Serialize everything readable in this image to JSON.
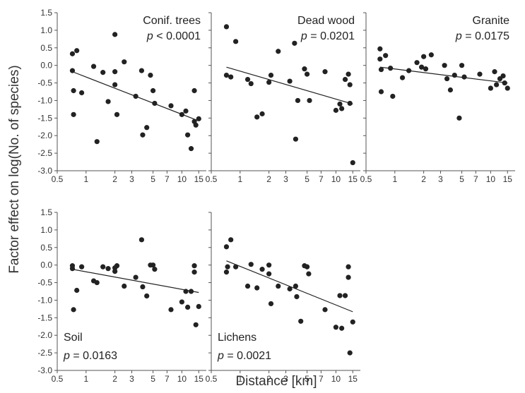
{
  "chart_data": {
    "type": "scatter",
    "xlabel": "Distance [km]",
    "ylabel": "Factor effect on log(No. of species)",
    "x_scale": "log",
    "xlim": [
      0.5,
      18
    ],
    "ylim": [
      -3.0,
      1.5
    ],
    "x_ticks": [
      "0.5",
      "1",
      "2",
      "3",
      "5",
      "7",
      "10",
      "15"
    ],
    "y_ticks": [
      "1.5",
      "1.0",
      "0.5",
      "0.0",
      "-0.5",
      "-1.0",
      "-1.5",
      "-2.0",
      "-2.5",
      "-3.0"
    ],
    "colors": {
      "points": "#222222",
      "lines": "#222222",
      "frame": "#555555"
    },
    "panels": [
      {
        "name": "Conif. trees",
        "p_symbol": "p",
        "p_rest": " < 0.0001",
        "points": [
          [
            0.72,
            0.33
          ],
          [
            0.72,
            -0.15
          ],
          [
            0.74,
            -0.72
          ],
          [
            0.74,
            -1.4
          ],
          [
            0.8,
            0.42
          ],
          [
            0.9,
            -0.78
          ],
          [
            1.2,
            -0.03
          ],
          [
            1.3,
            -2.17
          ],
          [
            1.5,
            -0.2
          ],
          [
            1.7,
            -1.03
          ],
          [
            2.0,
            0.88
          ],
          [
            2.0,
            -0.18
          ],
          [
            2.0,
            -0.55
          ],
          [
            2.1,
            -1.4
          ],
          [
            2.5,
            0.1
          ],
          [
            3.3,
            -0.88
          ],
          [
            3.8,
            -0.15
          ],
          [
            3.9,
            -1.98
          ],
          [
            4.3,
            -1.77
          ],
          [
            4.7,
            -0.28
          ],
          [
            5.0,
            -0.72
          ],
          [
            5.2,
            -1.08
          ],
          [
            7.7,
            -1.15
          ],
          [
            10,
            -1.4
          ],
          [
            11,
            -1.3
          ],
          [
            11.5,
            -1.98
          ],
          [
            12.5,
            -2.37
          ],
          [
            13.5,
            -0.72
          ],
          [
            13.5,
            -1.6
          ],
          [
            14,
            -1.7
          ],
          [
            15,
            -1.52
          ]
        ],
        "trend": [
          [
            0.72,
            -0.18
          ],
          [
            15,
            -1.58
          ]
        ]
      },
      {
        "name": "Dead wood",
        "p_symbol": "p",
        "p_rest": " = 0.0201",
        "points": [
          [
            0.72,
            1.1
          ],
          [
            0.72,
            -0.28
          ],
          [
            0.8,
            -0.33
          ],
          [
            0.9,
            0.68
          ],
          [
            1.2,
            -0.4
          ],
          [
            1.3,
            -0.52
          ],
          [
            1.5,
            -1.47
          ],
          [
            1.7,
            -1.38
          ],
          [
            2.0,
            -0.48
          ],
          [
            2.1,
            -0.28
          ],
          [
            2.5,
            0.4
          ],
          [
            3.3,
            -0.45
          ],
          [
            3.7,
            0.63
          ],
          [
            3.8,
            -2.1
          ],
          [
            4.0,
            -1.0
          ],
          [
            4.7,
            -0.1
          ],
          [
            5.0,
            -0.25
          ],
          [
            5.3,
            -1.0
          ],
          [
            7.7,
            -0.18
          ],
          [
            10,
            -1.28
          ],
          [
            11,
            -1.1
          ],
          [
            11.5,
            -1.23
          ],
          [
            12.5,
            -0.4
          ],
          [
            13.5,
            -0.25
          ],
          [
            14,
            -0.55
          ],
          [
            14,
            -1.08
          ],
          [
            15,
            -2.77
          ]
        ],
        "trend": [
          [
            0.72,
            -0.05
          ],
          [
            15,
            -1.1
          ]
        ]
      },
      {
        "name": "Granite",
        "p_symbol": "p",
        "p_rest": " = 0.0175",
        "points": [
          [
            0.7,
            0.47
          ],
          [
            0.7,
            0.18
          ],
          [
            0.72,
            -0.12
          ],
          [
            0.72,
            -0.75
          ],
          [
            0.8,
            0.28
          ],
          [
            0.9,
            -0.08
          ],
          [
            0.95,
            -0.88
          ],
          [
            1.2,
            -0.35
          ],
          [
            1.4,
            -0.15
          ],
          [
            1.7,
            0.08
          ],
          [
            1.9,
            -0.05
          ],
          [
            2.0,
            0.25
          ],
          [
            2.1,
            -0.1
          ],
          [
            2.4,
            0.3
          ],
          [
            3.3,
            0.0
          ],
          [
            3.5,
            -0.38
          ],
          [
            3.8,
            -0.7
          ],
          [
            4.2,
            -0.28
          ],
          [
            4.7,
            -1.5
          ],
          [
            5.0,
            0.0
          ],
          [
            5.3,
            -0.33
          ],
          [
            7.7,
            -0.25
          ],
          [
            10,
            -0.65
          ],
          [
            11,
            -0.18
          ],
          [
            11.5,
            -0.55
          ],
          [
            12.5,
            -0.38
          ],
          [
            13.5,
            -0.3
          ],
          [
            14,
            -0.5
          ],
          [
            15,
            -0.65
          ]
        ],
        "trend": [
          [
            0.7,
            -0.05
          ],
          [
            15,
            -0.5
          ]
        ]
      },
      {
        "name": "Soil",
        "p_symbol": "p",
        "p_rest": " = 0.0163",
        "points": [
          [
            0.72,
            -0.02
          ],
          [
            0.72,
            -0.1
          ],
          [
            0.74,
            -1.27
          ],
          [
            0.8,
            -0.72
          ],
          [
            0.9,
            -0.05
          ],
          [
            1.2,
            -0.45
          ],
          [
            1.3,
            -0.5
          ],
          [
            1.5,
            -0.05
          ],
          [
            1.7,
            -0.1
          ],
          [
            2.0,
            -0.08
          ],
          [
            2.0,
            -0.18
          ],
          [
            2.1,
            -0.02
          ],
          [
            2.5,
            -0.6
          ],
          [
            3.3,
            -0.35
          ],
          [
            3.8,
            0.72
          ],
          [
            3.9,
            -0.62
          ],
          [
            4.3,
            -0.88
          ],
          [
            4.7,
            0.0
          ],
          [
            5.0,
            0.0
          ],
          [
            5.2,
            -0.12
          ],
          [
            7.7,
            -1.27
          ],
          [
            10,
            -1.05
          ],
          [
            11,
            -0.75
          ],
          [
            11.5,
            -1.2
          ],
          [
            12.5,
            -0.75
          ],
          [
            13.5,
            -0.02
          ],
          [
            13.5,
            -0.2
          ],
          [
            14,
            -1.7
          ],
          [
            15,
            -1.18
          ]
        ],
        "trend": [
          [
            0.72,
            -0.12
          ],
          [
            15,
            -0.78
          ]
        ]
      },
      {
        "name": "Lichens",
        "p_symbol": "p",
        "p_rest": " = 0.0021",
        "points": [
          [
            0.72,
            0.52
          ],
          [
            0.72,
            -0.2
          ],
          [
            0.74,
            -0.05
          ],
          [
            0.8,
            0.72
          ],
          [
            0.9,
            -0.05
          ],
          [
            1.2,
            -0.6
          ],
          [
            1.3,
            0.02
          ],
          [
            1.5,
            -0.65
          ],
          [
            1.7,
            -0.12
          ],
          [
            2.0,
            -0.25
          ],
          [
            2.0,
            0.0
          ],
          [
            2.1,
            -1.1
          ],
          [
            2.5,
            -0.6
          ],
          [
            3.3,
            -0.68
          ],
          [
            3.8,
            -0.6
          ],
          [
            3.9,
            -0.9
          ],
          [
            4.3,
            -1.6
          ],
          [
            4.7,
            -0.02
          ],
          [
            5.0,
            -0.05
          ],
          [
            5.2,
            -0.25
          ],
          [
            7.7,
            -1.27
          ],
          [
            10,
            -1.77
          ],
          [
            11,
            -0.87
          ],
          [
            11.5,
            -1.8
          ],
          [
            12.5,
            -0.87
          ],
          [
            13.5,
            -0.05
          ],
          [
            13.5,
            -0.35
          ],
          [
            14,
            -2.5
          ],
          [
            15,
            -1.62
          ]
        ],
        "trend": [
          [
            0.72,
            0.12
          ],
          [
            15,
            -1.33
          ]
        ]
      }
    ]
  }
}
